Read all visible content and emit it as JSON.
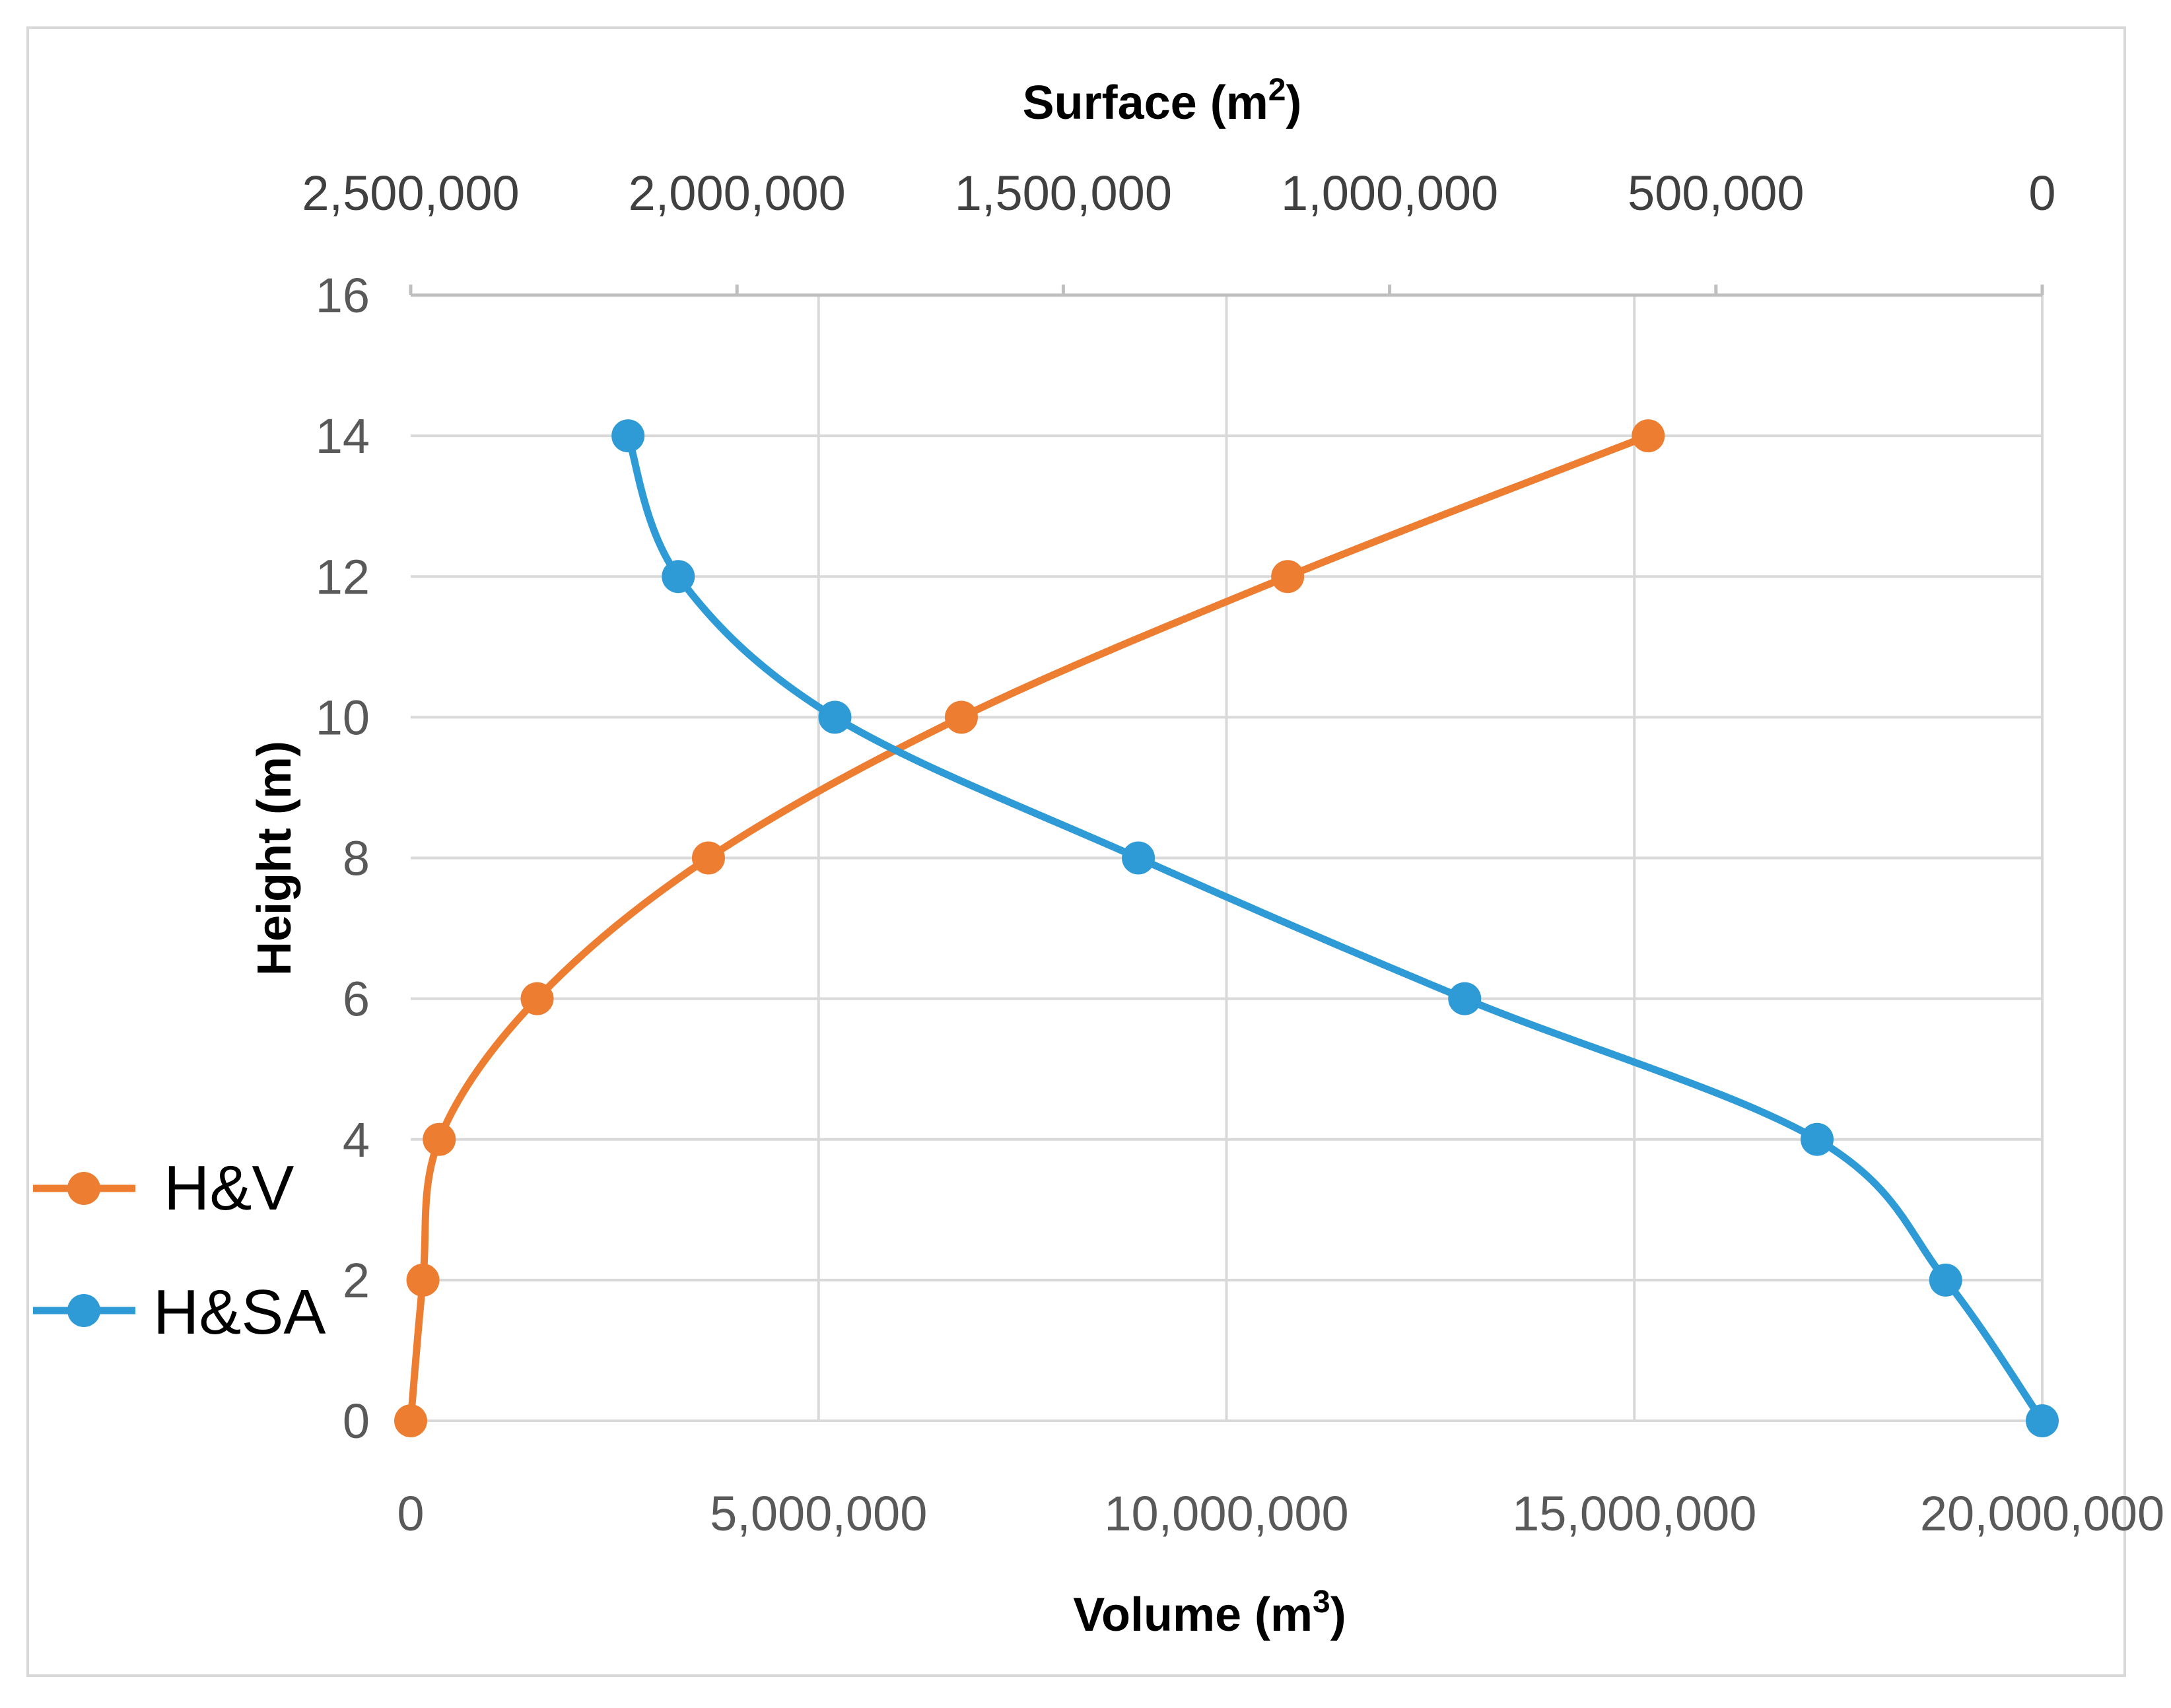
{
  "chart_data": {
    "type": "line",
    "y_axis": {
      "label": "Height (m)",
      "range": [
        0,
        16
      ],
      "ticks": [
        0,
        2,
        4,
        6,
        8,
        10,
        12,
        14,
        16
      ]
    },
    "x_axis_bottom": {
      "label_text": "Volume (m",
      "label_sup": "3",
      "label_close": ")",
      "range": [
        0,
        20000000
      ],
      "ticks": [
        0,
        5000000,
        10000000,
        15000000,
        20000000
      ],
      "tick_labels": [
        "0",
        "5,000,000",
        "10,000,000",
        "15,000,000",
        "20,000,000"
      ]
    },
    "x_axis_top": {
      "label_text": "Surface (m",
      "label_sup": "2",
      "label_close": ")",
      "range": [
        2500000,
        0
      ],
      "reversed": true,
      "ticks": [
        2500000,
        2000000,
        1500000,
        1000000,
        500000,
        0
      ],
      "tick_labels": [
        "2,500,000",
        "2,000,000",
        "1,500,000",
        "1,000,000",
        "500,000",
        "0"
      ]
    },
    "grid": true,
    "legend": "left",
    "series": [
      {
        "name": "H&V",
        "axis": "bottom",
        "color": "#ED7D31",
        "points": [
          {
            "x": 0,
            "y": 0
          },
          {
            "x": 150000,
            "y": 2
          },
          {
            "x": 350000,
            "y": 4
          },
          {
            "x": 1550000,
            "y": 6
          },
          {
            "x": 3650000,
            "y": 8
          },
          {
            "x": 6750000,
            "y": 10
          },
          {
            "x": 10750000,
            "y": 12
          },
          {
            "x": 15170000,
            "y": 14
          }
        ]
      },
      {
        "name": "H&SA",
        "axis": "top",
        "color": "#2E9BD6",
        "points": [
          {
            "x": 0,
            "y": 0
          },
          {
            "x": 148000,
            "y": 2
          },
          {
            "x": 345000,
            "y": 4
          },
          {
            "x": 885000,
            "y": 6
          },
          {
            "x": 1385000,
            "y": 8
          },
          {
            "x": 1850000,
            "y": 10
          },
          {
            "x": 2090000,
            "y": 12
          },
          {
            "x": 2167000,
            "y": 14
          }
        ]
      }
    ]
  }
}
